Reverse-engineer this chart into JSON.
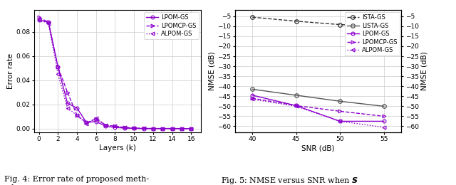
{
  "fig4": {
    "xlabel": "Layers (k)",
    "ylabel": "Error rate",
    "xlim": [
      -0.5,
      17
    ],
    "ylim": [
      -0.003,
      0.098
    ],
    "yticks": [
      0.0,
      0.02,
      0.04,
      0.06,
      0.08
    ],
    "xticks": [
      0,
      2,
      4,
      6,
      8,
      10,
      12,
      14,
      16
    ],
    "layers": [
      0,
      1,
      2,
      3,
      4,
      5,
      6,
      7,
      8,
      9,
      10,
      11,
      12,
      13,
      14,
      15,
      16
    ],
    "LPOM_GS": [
      0.09,
      0.088,
      0.051,
      0.021,
      0.017,
      0.005,
      0.006,
      0.002,
      0.001,
      0.0005,
      0.0002,
      0.0001,
      0.0001,
      0.0001,
      0.0001,
      5e-05,
      5e-05
    ],
    "LPOMCP_GS": [
      0.092,
      0.088,
      0.051,
      0.03,
      0.011,
      0.005,
      0.008,
      0.003,
      0.002,
      0.001,
      0.0005,
      0.0002,
      0.0001,
      0.0001,
      0.0001,
      5e-05,
      5e-05
    ],
    "ALPOM_GS": [
      0.09,
      0.087,
      0.045,
      0.017,
      0.011,
      0.004,
      0.009,
      0.003,
      0.002,
      0.001,
      0.0005,
      0.0002,
      0.0001,
      0.0001,
      0.0001,
      5e-05,
      5e-05
    ],
    "color_purple": "#8B00CC",
    "legend_entries": [
      "LPOM-GS",
      "LPOMCP-GS",
      "ALPOM-GS"
    ]
  },
  "fig5": {
    "xlabel": "SNR (dB)",
    "ylabel": "NMSE (dB)",
    "xlim": [
      38,
      57
    ],
    "ylim": [
      -63,
      -2
    ],
    "yticks": [
      -60,
      -55,
      -50,
      -45,
      -40,
      -35,
      -30,
      -25,
      -20,
      -15,
      -10,
      -5
    ],
    "xticks": [
      40,
      45,
      50,
      55
    ],
    "snr": [
      40,
      45,
      50,
      55
    ],
    "ISTA_GS": [
      -5.5,
      -7.5,
      -9.2,
      -10.0
    ],
    "LISTA_GS": [
      -41.5,
      -44.5,
      -47.5,
      -50.0
    ],
    "LPOM_GS": [
      -44.5,
      -49.7,
      -57.5,
      -57.5
    ],
    "LPOMCP_GS": [
      -46.0,
      -49.7,
      -52.5,
      -55.0
    ],
    "ALPOM_GS": [
      -46.5,
      -50.0,
      -57.5,
      -60.5
    ],
    "color_ista": "#333333",
    "color_lista": "#555555",
    "color_purple": "#8B00CC",
    "legend_entries": [
      "ISTA-GS",
      "LISTA-GS",
      "LPOM-GS",
      "LPOMCP-GS",
      "ALPOM-GS"
    ]
  }
}
